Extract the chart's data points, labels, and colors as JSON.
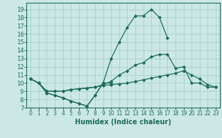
{
  "xlabel": "Humidex (Indice chaleur)",
  "bg_color": "#cce8e4",
  "grid_color": "#99cccc",
  "line_color": "#1a6b5a",
  "xlim": [
    -0.5,
    23.5
  ],
  "ylim": [
    7,
    19.8
  ],
  "xticks": [
    0,
    1,
    2,
    3,
    4,
    5,
    6,
    7,
    8,
    9,
    10,
    11,
    12,
    13,
    14,
    15,
    16,
    17,
    18,
    19,
    20,
    21,
    22,
    23
  ],
  "yticks": [
    7,
    8,
    9,
    10,
    11,
    12,
    13,
    14,
    15,
    16,
    17,
    18,
    19
  ],
  "line1_x": [
    0,
    1,
    2,
    3,
    4,
    5,
    6,
    7,
    8,
    9,
    10
  ],
  "line1_y": [
    10.5,
    10.0,
    8.8,
    8.5,
    8.2,
    7.8,
    7.5,
    7.2,
    8.5,
    10.0,
    10.0
  ],
  "line2_x": [
    0,
    1,
    2,
    3,
    4,
    5,
    6,
    7,
    8,
    9,
    10,
    11,
    12,
    13,
    14,
    15,
    16,
    17
  ],
  "line2_y": [
    10.5,
    10.0,
    8.8,
    8.5,
    8.2,
    7.8,
    7.5,
    7.2,
    8.5,
    10.0,
    13.0,
    15.0,
    16.8,
    18.2,
    18.2,
    19.0,
    18.0,
    15.5
  ],
  "line3_x": [
    0,
    1,
    2,
    3,
    4,
    5,
    6,
    7,
    8,
    9,
    10,
    11,
    12,
    13,
    14,
    15,
    16,
    17,
    18,
    19,
    20,
    21,
    22,
    23
  ],
  "line3_y": [
    10.5,
    10.0,
    9.0,
    9.0,
    9.0,
    9.2,
    9.3,
    9.4,
    9.5,
    9.8,
    10.2,
    11.0,
    11.5,
    12.2,
    12.5,
    13.2,
    13.5,
    13.5,
    11.8,
    12.0,
    10.0,
    10.0,
    9.5,
    9.5
  ],
  "line4_x": [
    0,
    1,
    2,
    3,
    4,
    5,
    6,
    7,
    8,
    9,
    10,
    11,
    12,
    13,
    14,
    15,
    16,
    17,
    18,
    19,
    20,
    21,
    22,
    23
  ],
  "line4_y": [
    10.5,
    10.0,
    9.0,
    9.0,
    9.0,
    9.2,
    9.3,
    9.4,
    9.5,
    9.7,
    9.8,
    9.9,
    10.0,
    10.2,
    10.4,
    10.6,
    10.8,
    11.0,
    11.2,
    11.5,
    11.0,
    10.5,
    9.8,
    9.5
  ]
}
